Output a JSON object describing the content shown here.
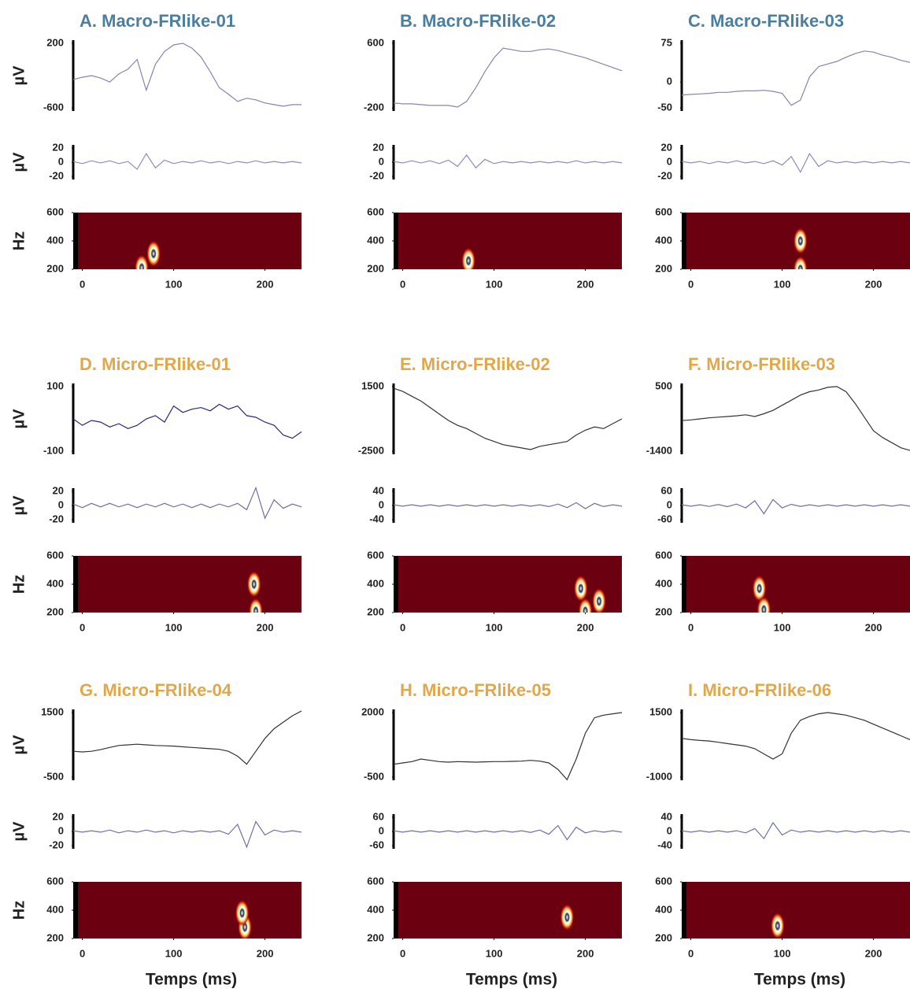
{
  "axis_labels": {
    "amplitude": "µV",
    "frequency": "Hz",
    "time": "Temps (ms)"
  },
  "chart_data": [
    {
      "type": "eeg-panel",
      "title": "A. Macro-FRlike-01",
      "title_color": "#4a7fa0",
      "x": [
        -10,
        0,
        10,
        20,
        30,
        40,
        50,
        60,
        70,
        80,
        90,
        100,
        110,
        120,
        130,
        140,
        150,
        160,
        170,
        180,
        190,
        200,
        210,
        220,
        230,
        240
      ],
      "xlim": [
        -10,
        240
      ],
      "xticks": [
        0,
        100,
        200
      ],
      "raw": {
        "color": "#8884b0",
        "ylim": [
          -600,
          200
        ],
        "yticks": [
          200,
          -600
        ],
        "values": [
          -250,
          -220,
          -200,
          -230,
          -280,
          -180,
          -120,
          0,
          -380,
          -60,
          100,
          180,
          200,
          140,
          30,
          -150,
          -350,
          -430,
          -520,
          -480,
          -500,
          -540,
          -560,
          -580,
          -560,
          -560
        ]
      },
      "filtered": {
        "color": "#8e8cc0",
        "ylim": [
          -20,
          20
        ],
        "yticks": [
          20,
          0,
          -20
        ],
        "values": [
          1,
          -2,
          2,
          -1,
          2,
          -2,
          1,
          -10,
          12,
          -8,
          3,
          -2,
          1,
          -1,
          2,
          -1,
          1,
          -2,
          1,
          -1,
          2,
          -1,
          1,
          -1,
          1,
          -1
        ]
      },
      "tf": {
        "color": "#6b0010",
        "ylim": [
          200,
          600
        ],
        "yticks": [
          600,
          400,
          200
        ],
        "hotspots": [
          {
            "t": 65,
            "f": 210
          },
          {
            "t": 78,
            "f": 310
          }
        ]
      }
    },
    {
      "type": "eeg-panel",
      "title": "B. Macro-FRlike-02",
      "title_color": "#4a7fa0",
      "x": [
        -10,
        0,
        10,
        20,
        30,
        40,
        50,
        60,
        70,
        80,
        90,
        100,
        110,
        120,
        130,
        140,
        150,
        160,
        170,
        180,
        190,
        200,
        210,
        220,
        230,
        240
      ],
      "xlim": [
        -10,
        240
      ],
      "xticks": [
        0,
        100,
        200
      ],
      "raw": {
        "color": "#8884b0",
        "ylim": [
          -200,
          600
        ],
        "yticks": [
          600,
          -200
        ],
        "values": [
          -140,
          -150,
          -150,
          -160,
          -170,
          -170,
          -170,
          -190,
          -120,
          50,
          250,
          420,
          540,
          520,
          500,
          500,
          520,
          530,
          510,
          480,
          450,
          420,
          380,
          340,
          300,
          260
        ]
      },
      "filtered": {
        "color": "#8e8cc0",
        "ylim": [
          -20,
          20
        ],
        "yticks": [
          20,
          0,
          -20
        ],
        "values": [
          1,
          -1,
          2,
          -1,
          2,
          -2,
          3,
          -6,
          10,
          -8,
          4,
          -2,
          1,
          -1,
          1,
          -1,
          1,
          -1,
          1,
          -1,
          2,
          -1,
          1,
          -1,
          1,
          -1
        ]
      },
      "tf": {
        "color": "#6b0010",
        "ylim": [
          200,
          600
        ],
        "yticks": [
          600,
          400,
          200
        ],
        "hotspots": [
          {
            "t": 72,
            "f": 260
          }
        ]
      }
    },
    {
      "type": "eeg-panel",
      "title": "C. Macro-FRlike-03",
      "title_color": "#4a7fa0",
      "x": [
        -10,
        0,
        10,
        20,
        30,
        40,
        50,
        60,
        70,
        80,
        90,
        100,
        110,
        120,
        130,
        140,
        150,
        160,
        170,
        180,
        190,
        200,
        210,
        220,
        230,
        240
      ],
      "xlim": [
        -10,
        240
      ],
      "xticks": [
        0,
        100,
        200
      ],
      "raw": {
        "color": "#8884b0",
        "ylim": [
          -50,
          75
        ],
        "yticks": [
          75,
          0,
          -50
        ],
        "values": [
          -25,
          -24,
          -23,
          -22,
          -20,
          -20,
          -18,
          -17,
          -17,
          -16,
          -18,
          -22,
          -45,
          -35,
          10,
          30,
          35,
          40,
          48,
          55,
          60,
          58,
          52,
          48,
          42,
          38
        ]
      },
      "filtered": {
        "color": "#8e8cc0",
        "ylim": [
          -20,
          20
        ],
        "yticks": [
          20,
          0,
          -20
        ],
        "values": [
          1,
          -1,
          1,
          -2,
          1,
          -1,
          2,
          -1,
          1,
          -2,
          2,
          -4,
          8,
          -14,
          12,
          -6,
          2,
          -1,
          1,
          -1,
          1,
          -1,
          1,
          -1,
          1,
          -1
        ]
      },
      "tf": {
        "color": "#6b0010",
        "ylim": [
          200,
          600
        ],
        "yticks": [
          600,
          400,
          200
        ],
        "hotspots": [
          {
            "t": 120,
            "f": 400
          },
          {
            "t": 120,
            "f": 200
          }
        ]
      }
    },
    {
      "type": "eeg-panel",
      "title": "D. Micro-FRlike-01",
      "title_color": "#e0a84a",
      "x": [
        -10,
        0,
        10,
        20,
        30,
        40,
        50,
        60,
        70,
        80,
        90,
        100,
        110,
        120,
        130,
        140,
        150,
        160,
        170,
        180,
        190,
        200,
        210,
        220,
        230,
        240
      ],
      "xlim": [
        -10,
        240
      ],
      "xticks": [
        0,
        100,
        200
      ],
      "raw": {
        "color": "#2a2a7a",
        "ylim": [
          -100,
          100
        ],
        "yticks": [
          100,
          -100
        ],
        "values": [
          0,
          -20,
          -5,
          -10,
          -25,
          -15,
          -30,
          -20,
          0,
          10,
          -10,
          40,
          20,
          30,
          35,
          25,
          45,
          30,
          40,
          10,
          5,
          -10,
          -20,
          -50,
          -60,
          -40
        ]
      },
      "filtered": {
        "color": "#7070a0",
        "ylim": [
          -20,
          20
        ],
        "yticks": [
          20,
          0,
          -20
        ],
        "values": [
          2,
          -3,
          3,
          -2,
          3,
          -2,
          2,
          -3,
          2,
          -2,
          3,
          -2,
          2,
          -3,
          2,
          -3,
          2,
          -2,
          3,
          -6,
          25,
          -18,
          8,
          -4,
          2,
          -2
        ]
      },
      "tf": {
        "color": "#6b0010",
        "ylim": [
          200,
          600
        ],
        "yticks": [
          600,
          400,
          200
        ],
        "hotspots": [
          {
            "t": 188,
            "f": 400
          },
          {
            "t": 190,
            "f": 210
          }
        ]
      }
    },
    {
      "type": "eeg-panel",
      "title": "E. Micro-FRlike-02",
      "title_color": "#e0a84a",
      "x": [
        -10,
        0,
        10,
        20,
        30,
        40,
        50,
        60,
        70,
        80,
        90,
        100,
        110,
        120,
        130,
        140,
        150,
        160,
        170,
        180,
        190,
        200,
        210,
        220,
        230,
        240
      ],
      "xlim": [
        -10,
        240
      ],
      "xticks": [
        0,
        100,
        200
      ],
      "raw": {
        "color": "#333333",
        "ylim": [
          -2500,
          1500
        ],
        "yticks": [
          1500,
          -2500
        ],
        "values": [
          1400,
          1200,
          900,
          600,
          200,
          -200,
          -600,
          -900,
          -1100,
          -1400,
          -1700,
          -1900,
          -2100,
          -2200,
          -2300,
          -2400,
          -2200,
          -2100,
          -2000,
          -1900,
          -1500,
          -1200,
          -1000,
          -1100,
          -800,
          -500
        ]
      },
      "filtered": {
        "color": "#7070a0",
        "ylim": [
          -40,
          40
        ],
        "yticks": [
          40,
          0,
          -40
        ],
        "values": [
          2,
          -2,
          2,
          -2,
          2,
          -2,
          2,
          -2,
          2,
          -2,
          2,
          -2,
          2,
          -2,
          2,
          -2,
          2,
          -3,
          4,
          -6,
          8,
          -9,
          6,
          -3,
          2,
          -2
        ]
      },
      "tf": {
        "color": "#6b0010",
        "ylim": [
          200,
          600
        ],
        "yticks": [
          600,
          400,
          200
        ],
        "hotspots": [
          {
            "t": 195,
            "f": 370
          },
          {
            "t": 215,
            "f": 280
          },
          {
            "t": 200,
            "f": 210
          }
        ]
      }
    },
    {
      "type": "eeg-panel",
      "title": "F. Micro-FRlike-03",
      "title_color": "#e0a84a",
      "x": [
        -10,
        0,
        10,
        20,
        30,
        40,
        50,
        60,
        70,
        80,
        90,
        100,
        110,
        120,
        130,
        140,
        150,
        160,
        170,
        180,
        190,
        200,
        210,
        220,
        230,
        240
      ],
      "xlim": [
        -10,
        240
      ],
      "xticks": [
        0,
        100,
        200
      ],
      "raw": {
        "color": "#333333",
        "ylim": [
          -1400,
          500
        ],
        "yticks": [
          500,
          -1400
        ],
        "values": [
          -500,
          -480,
          -450,
          -420,
          -400,
          -380,
          -360,
          -330,
          -380,
          -300,
          -200,
          -50,
          100,
          250,
          350,
          400,
          480,
          500,
          350,
          0,
          -400,
          -800,
          -1000,
          -1150,
          -1300,
          -1380
        ]
      },
      "filtered": {
        "color": "#7070a0",
        "ylim": [
          -60,
          60
        ],
        "yticks": [
          60,
          0,
          -60
        ],
        "values": [
          3,
          -3,
          3,
          -4,
          4,
          -5,
          6,
          -10,
          20,
          -35,
          25,
          -10,
          5,
          -4,
          3,
          -3,
          3,
          -3,
          3,
          -3,
          3,
          -3,
          3,
          -3,
          3,
          -3
        ]
      },
      "tf": {
        "color": "#6b0010",
        "ylim": [
          200,
          600
        ],
        "yticks": [
          600,
          400,
          200
        ],
        "hotspots": [
          {
            "t": 75,
            "f": 370
          },
          {
            "t": 80,
            "f": 220
          }
        ]
      }
    },
    {
      "type": "eeg-panel",
      "title": "G. Micro-FRlike-04",
      "title_color": "#e0a84a",
      "x": [
        -10,
        0,
        10,
        20,
        30,
        40,
        50,
        60,
        70,
        80,
        90,
        100,
        110,
        120,
        130,
        140,
        150,
        160,
        170,
        180,
        190,
        200,
        210,
        220,
        230,
        240
      ],
      "xlim": [
        -10,
        240
      ],
      "xticks": [
        0,
        100,
        200
      ],
      "raw": {
        "color": "#333333",
        "ylim": [
          -500,
          1500
        ],
        "yticks": [
          1500,
          -500
        ],
        "values": [
          300,
          280,
          300,
          350,
          420,
          480,
          500,
          520,
          500,
          480,
          470,
          460,
          440,
          420,
          400,
          380,
          360,
          300,
          150,
          -100,
          300,
          700,
          1000,
          1200,
          1400,
          1550
        ]
      },
      "filtered": {
        "color": "#7070a0",
        "ylim": [
          -20,
          20
        ],
        "yticks": [
          20,
          0,
          -20
        ],
        "values": [
          1,
          -1,
          1,
          -1,
          2,
          -2,
          1,
          -1,
          2,
          -1,
          1,
          -2,
          1,
          -1,
          1,
          -1,
          1,
          -4,
          10,
          -22,
          14,
          -5,
          2,
          -1,
          1,
          -1
        ]
      },
      "tf": {
        "color": "#6b0010",
        "ylim": [
          200,
          600
        ],
        "yticks": [
          600,
          400,
          200
        ],
        "hotspots": [
          {
            "t": 178,
            "f": 280
          },
          {
            "t": 175,
            "f": 380
          }
        ]
      }
    },
    {
      "type": "eeg-panel",
      "title": "H. Micro-FRlike-05",
      "title_color": "#e0a84a",
      "x": [
        -10,
        0,
        10,
        20,
        30,
        40,
        50,
        60,
        70,
        80,
        90,
        100,
        110,
        120,
        130,
        140,
        150,
        160,
        170,
        180,
        190,
        200,
        210,
        220,
        230,
        240
      ],
      "xlim": [
        -10,
        240
      ],
      "xticks": [
        0,
        100,
        200
      ],
      "raw": {
        "color": "#333333",
        "ylim": [
          -500,
          2000
        ],
        "yticks": [
          2000,
          -500
        ],
        "values": [
          0,
          50,
          100,
          200,
          150,
          100,
          80,
          100,
          90,
          80,
          90,
          100,
          100,
          110,
          120,
          150,
          120,
          50,
          -200,
          -600,
          200,
          1200,
          1800,
          1900,
          1950,
          2000
        ]
      },
      "filtered": {
        "color": "#7070a0",
        "ylim": [
          -60,
          60
        ],
        "yticks": [
          60,
          0,
          -60
        ],
        "values": [
          3,
          -3,
          3,
          -3,
          3,
          -3,
          3,
          -3,
          3,
          -3,
          3,
          -3,
          3,
          -3,
          3,
          -4,
          6,
          -12,
          25,
          -35,
          18,
          -6,
          3,
          -3,
          3,
          -3
        ]
      },
      "tf": {
        "color": "#6b0010",
        "ylim": [
          200,
          600
        ],
        "yticks": [
          600,
          400,
          200
        ],
        "hotspots": [
          {
            "t": 180,
            "f": 350
          }
        ]
      }
    },
    {
      "type": "eeg-panel",
      "title": "I. Micro-FRlike-06",
      "title_color": "#e0a84a",
      "x": [
        -10,
        0,
        10,
        20,
        30,
        40,
        50,
        60,
        70,
        80,
        90,
        100,
        110,
        120,
        130,
        140,
        150,
        160,
        170,
        180,
        190,
        200,
        210,
        220,
        230,
        240
      ],
      "xlim": [
        -10,
        240
      ],
      "xticks": [
        0,
        100,
        200
      ],
      "raw": {
        "color": "#333333",
        "ylim": [
          -1000,
          1500
        ],
        "yticks": [
          1500,
          -1000
        ],
        "values": [
          500,
          450,
          420,
          400,
          350,
          300,
          250,
          200,
          100,
          -100,
          -300,
          -100,
          700,
          1200,
          1350,
          1450,
          1500,
          1450,
          1400,
          1300,
          1200,
          1050,
          900,
          750,
          600,
          450
        ]
      },
      "filtered": {
        "color": "#7070a0",
        "ylim": [
          -40,
          40
        ],
        "yticks": [
          40,
          0,
          -40
        ],
        "values": [
          2,
          -2,
          2,
          -2,
          2,
          -2,
          2,
          -4,
          8,
          -20,
          25,
          -10,
          4,
          -2,
          2,
          -2,
          2,
          -2,
          2,
          -2,
          2,
          -2,
          2,
          -2,
          2,
          -2
        ]
      },
      "tf": {
        "color": "#6b0010",
        "ylim": [
          200,
          600
        ],
        "yticks": [
          600,
          400,
          200
        ],
        "hotspots": [
          {
            "t": 95,
            "f": 290
          }
        ]
      }
    }
  ]
}
